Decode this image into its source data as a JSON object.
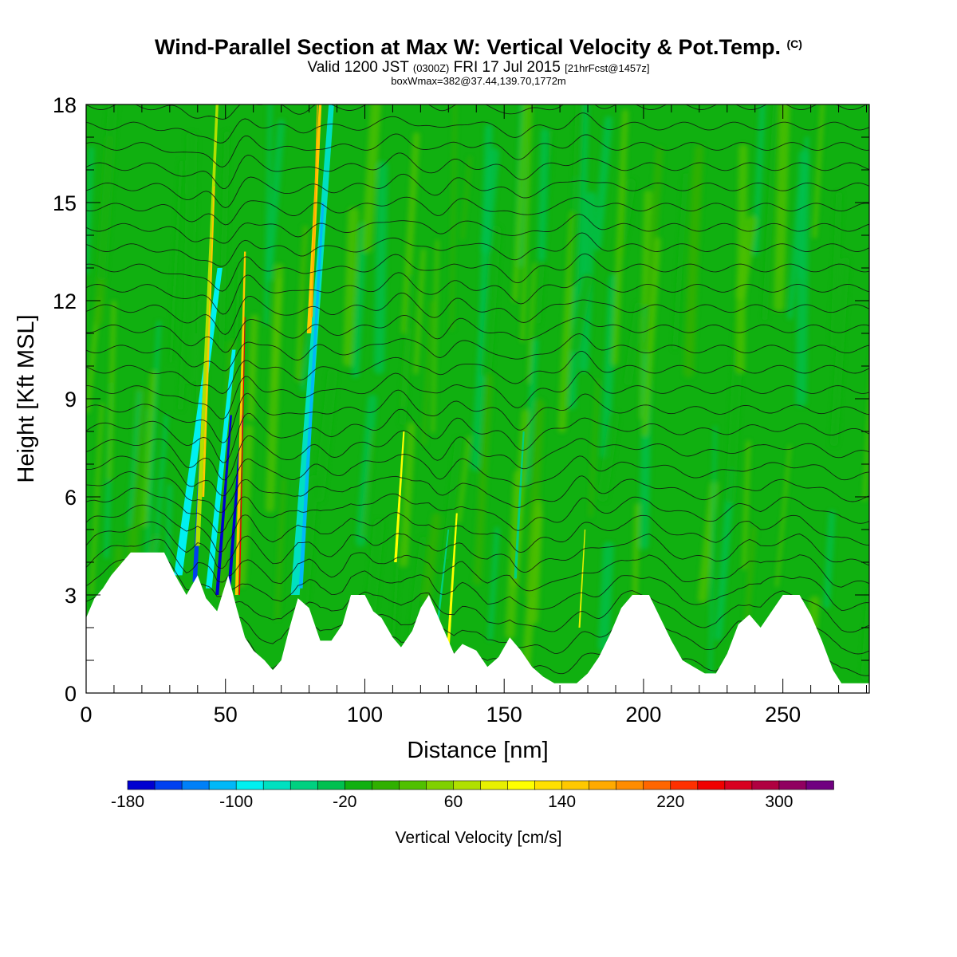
{
  "title": {
    "main": "Wind-Parallel Section at Max W: Vertical Velocity & Pot.Temp.",
    "copyright": "(C)",
    "valid_prefix": "Valid 1200 JST",
    "valid_utc": "(0300Z)",
    "valid_date": "FRI 17 Jul 2015",
    "forecast": "[21hrFcst@1457z]",
    "boxinfo": "boxWmax=382@37.44,139.70,1772m"
  },
  "chart_data": {
    "type": "heatmap",
    "xlabel": "Distance [nm]",
    "ylabel": "Height [Kft MSL]",
    "xlim": [
      0,
      281
    ],
    "ylim": [
      0,
      18
    ],
    "xticks": [
      0,
      50,
      100,
      150,
      200,
      250
    ],
    "yticks": [
      0,
      3,
      6,
      9,
      12,
      15,
      18
    ],
    "background_w": -10,
    "colorbar": {
      "label": "Vertical Velocity [cm/s]",
      "min": -180,
      "max": 340,
      "step": 20,
      "tick_labels": [
        -180,
        -100,
        -20,
        60,
        140,
        220,
        300
      ],
      "colors": [
        "#0000d0",
        "#0040f0",
        "#0080f8",
        "#00b8f8",
        "#00f0f0",
        "#00e0c0",
        "#00d080",
        "#00c050",
        "#10b010",
        "#30b000",
        "#50c000",
        "#80d000",
        "#b0e000",
        "#e8f000",
        "#ffff00",
        "#ffe000",
        "#ffc800",
        "#ffaa00",
        "#ff8c00",
        "#ff6600",
        "#ff3000",
        "#f00000",
        "#d80020",
        "#b00040",
        "#900060",
        "#700080"
      ]
    },
    "terrain": [
      [
        0,
        2.3
      ],
      [
        3,
        2.9
      ],
      [
        6,
        3.2
      ],
      [
        9,
        3.6
      ],
      [
        13,
        4.0
      ],
      [
        16,
        4.3
      ],
      [
        28,
        4.3
      ],
      [
        32,
        3.6
      ],
      [
        36,
        3.0
      ],
      [
        40,
        3.6
      ],
      [
        43,
        2.9
      ],
      [
        47,
        2.5
      ],
      [
        51,
        3.6
      ],
      [
        54,
        2.6
      ],
      [
        57,
        1.7
      ],
      [
        60,
        1.3
      ],
      [
        64,
        1.0
      ],
      [
        67,
        0.7
      ],
      [
        70,
        1.0
      ],
      [
        73,
        2.0
      ],
      [
        76,
        2.9
      ],
      [
        80,
        2.6
      ],
      [
        84,
        1.6
      ],
      [
        88,
        1.6
      ],
      [
        92,
        2.1
      ],
      [
        95,
        3.0
      ],
      [
        100,
        3.0
      ],
      [
        103,
        2.5
      ],
      [
        106,
        2.3
      ],
      [
        110,
        1.7
      ],
      [
        113,
        1.4
      ],
      [
        117,
        1.9
      ],
      [
        120,
        2.6
      ],
      [
        123,
        3.0
      ],
      [
        126,
        2.4
      ],
      [
        129,
        1.8
      ],
      [
        132,
        1.2
      ],
      [
        135,
        1.5
      ],
      [
        140,
        1.3
      ],
      [
        144,
        0.8
      ],
      [
        148,
        1.1
      ],
      [
        152,
        1.7
      ],
      [
        156,
        1.3
      ],
      [
        160,
        0.8
      ],
      [
        164,
        0.5
      ],
      [
        168,
        0.3
      ],
      [
        176,
        0.3
      ],
      [
        180,
        0.6
      ],
      [
        184,
        1.1
      ],
      [
        188,
        1.8
      ],
      [
        192,
        2.6
      ],
      [
        196,
        3.0
      ],
      [
        202,
        3.0
      ],
      [
        206,
        2.3
      ],
      [
        210,
        1.6
      ],
      [
        214,
        1.0
      ],
      [
        218,
        0.8
      ],
      [
        222,
        0.6
      ],
      [
        226,
        0.6
      ],
      [
        230,
        1.2
      ],
      [
        234,
        2.1
      ],
      [
        238,
        2.4
      ],
      [
        242,
        2.0
      ],
      [
        246,
        2.5
      ],
      [
        250,
        3.0
      ],
      [
        256,
        3.0
      ],
      [
        260,
        2.4
      ],
      [
        264,
        1.6
      ],
      [
        268,
        0.7
      ],
      [
        271,
        0.3
      ],
      [
        281,
        0.3
      ]
    ],
    "streaks": [
      {
        "x0": 33,
        "z0": 3.6,
        "x1": 48,
        "z1": 13.0,
        "w": 3.0,
        "w_cms": -100
      },
      {
        "x0": 39,
        "z0": 3.4,
        "x1": 44,
        "z1": 12.0,
        "w": 1.6,
        "w_cms": -160
      },
      {
        "x0": 44,
        "z0": 3.2,
        "x1": 53,
        "z1": 10.5,
        "w": 2.2,
        "w_cms": -90
      },
      {
        "x0": 47,
        "z0": 3.0,
        "x1": 52,
        "z1": 8.5,
        "w": 1.2,
        "w_cms": -170
      },
      {
        "x0": 51,
        "z0": 2.8,
        "x1": 56,
        "z1": 8.5,
        "w": 1.2,
        "w_cms": -175
      },
      {
        "x0": 40,
        "z0": 4.5,
        "x1": 47,
        "z1": 18.0,
        "w": 1.6,
        "w_cms": 70
      },
      {
        "x0": 42,
        "z0": 6.0,
        "x1": 46,
        "z1": 15.5,
        "w": 0.8,
        "w_cms": 140
      },
      {
        "x0": 54,
        "z0": 3.0,
        "x1": 57,
        "z1": 13.5,
        "w": 1.1,
        "w_cms": 150
      },
      {
        "x0": 55,
        "z0": 3.0,
        "x1": 57,
        "z1": 11.5,
        "w": 0.45,
        "w_cms": 240
      },
      {
        "x0": 75,
        "z0": 3.0,
        "x1": 88,
        "z1": 18.0,
        "w": 3.2,
        "w_cms": -80
      },
      {
        "x0": 77,
        "z0": 3.2,
        "x1": 85,
        "z1": 15.0,
        "w": 1.4,
        "w_cms": -120
      },
      {
        "x0": 80,
        "z0": 11.0,
        "x1": 84,
        "z1": 18.0,
        "w": 1.6,
        "w_cms": 140
      },
      {
        "x0": 81,
        "z0": 11.5,
        "x1": 83,
        "z1": 18.0,
        "w": 0.6,
        "w_cms": 170
      },
      {
        "x0": 111,
        "z0": 4.0,
        "x1": 114,
        "z1": 8.0,
        "w": 1.0,
        "w_cms": 100
      },
      {
        "x0": 130,
        "z0": 1.5,
        "x1": 133,
        "z1": 5.5,
        "w": 1.0,
        "w_cms": 110
      },
      {
        "x0": 126,
        "z0": 2.0,
        "x1": 130,
        "z1": 5.0,
        "w": 0.8,
        "w_cms": -60
      },
      {
        "x0": 154,
        "z0": 3.5,
        "x1": 157,
        "z1": 8.0,
        "w": 1.0,
        "w_cms": -60
      },
      {
        "x0": 177,
        "z0": 2.0,
        "x1": 179,
        "z1": 5.0,
        "w": 0.6,
        "w_cms": 80
      }
    ]
  }
}
